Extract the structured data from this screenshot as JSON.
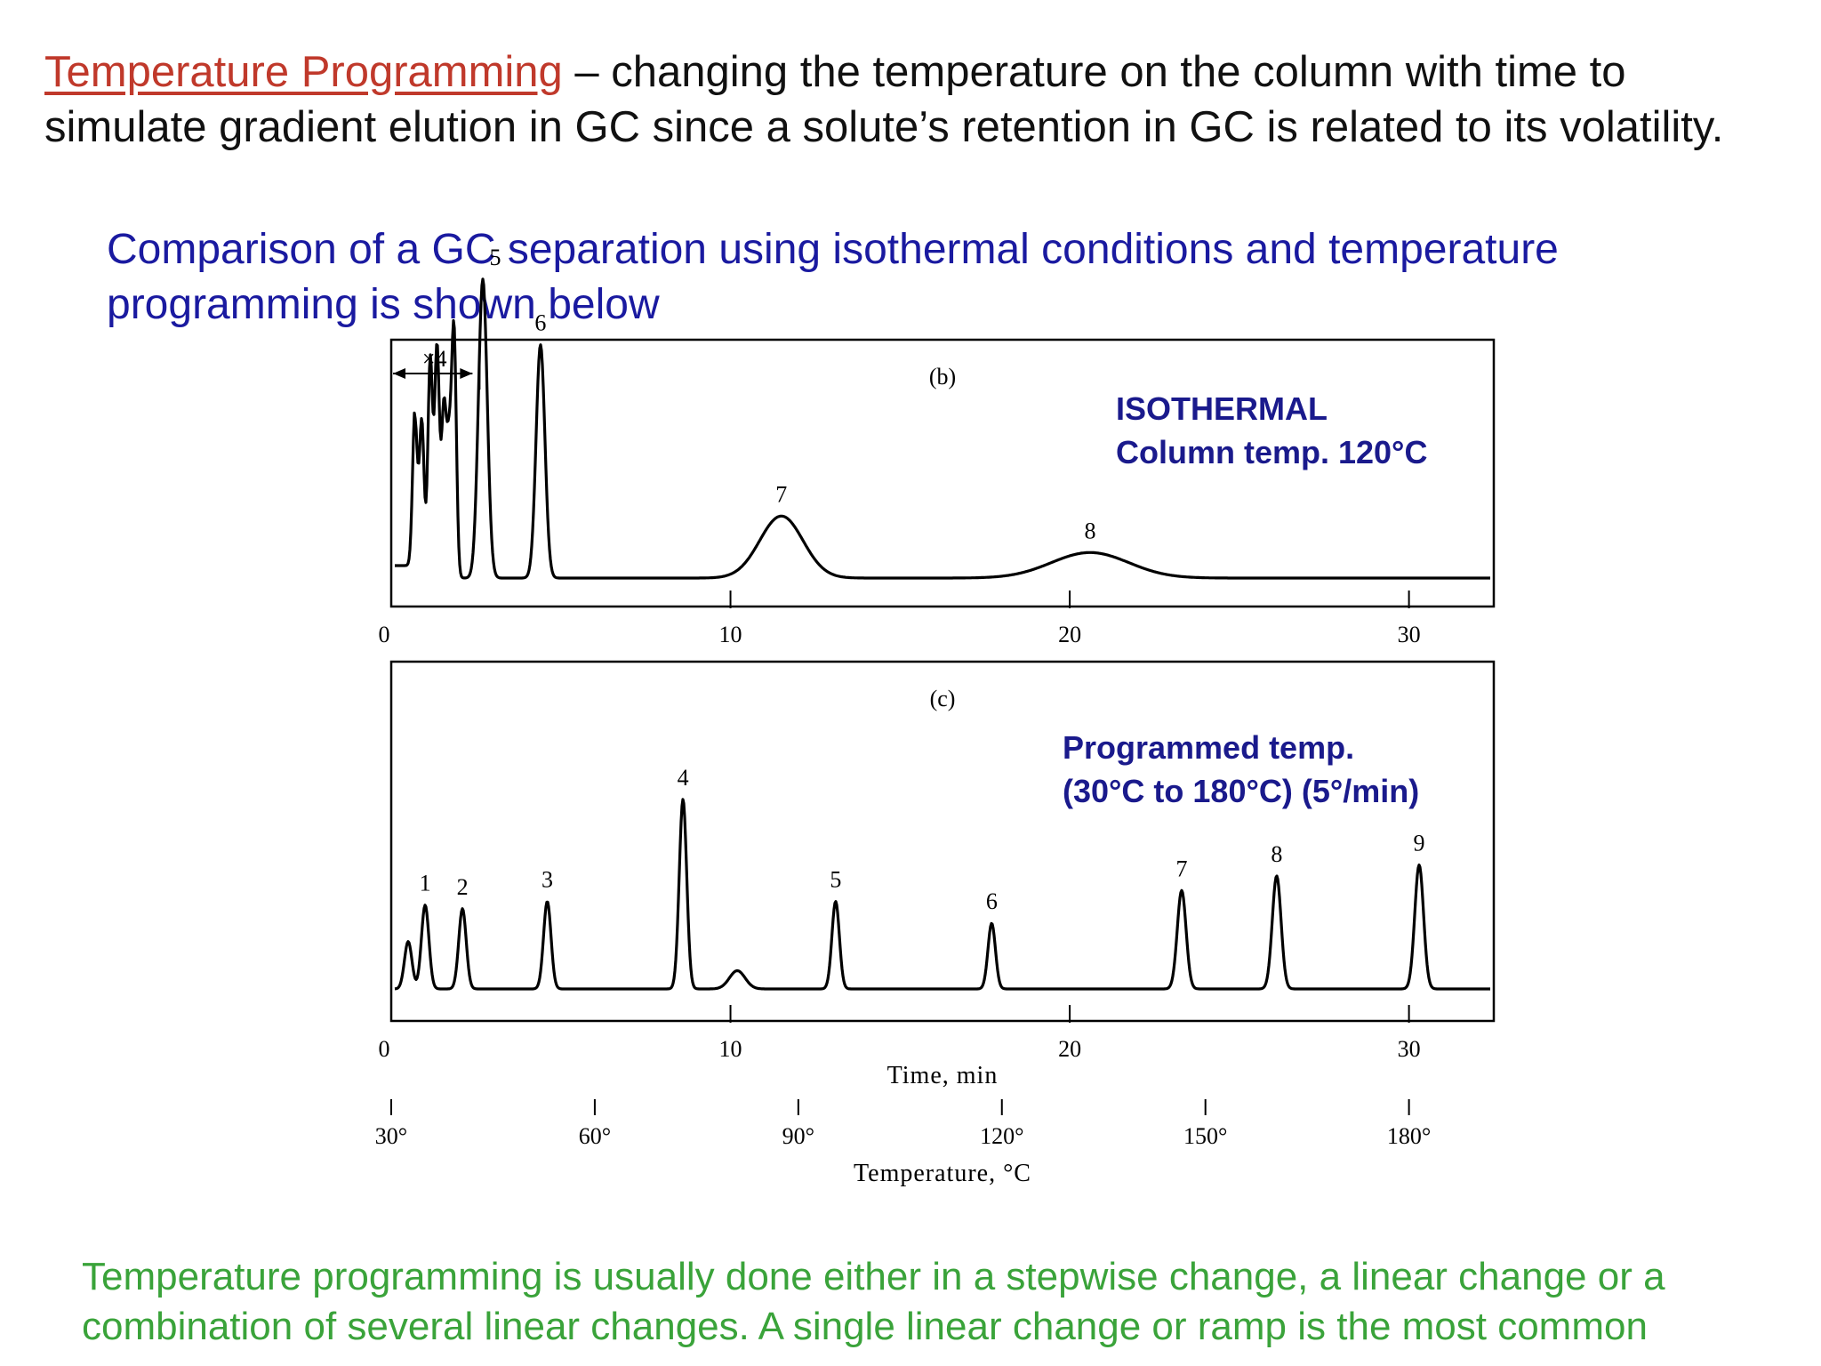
{
  "intro": {
    "term": "Temperature Programming",
    "text": " – changing the temperature on the column with time to simulate gradient elution in GC since a solute’s retention in GC is related to its volatility."
  },
  "comparison_text": "Comparison of a GC separation using isothermal conditions and temperature programming is shown below",
  "closing_text": "Temperature programming is usually done either in a stepwise change, a linear change or a combination of several linear changes.  A single linear change or ramp is the most common",
  "colors": {
    "term": "#c0392b",
    "comparison": "#1a1aa0",
    "closing": "#3aa33a",
    "annotation": "#1a1a8c",
    "trace": "#000000"
  },
  "chart_data": [
    {
      "type": "line",
      "panel": "(b)",
      "annotation_line1": "ISOTHERMAL",
      "annotation_line2": "Column temp. 120°C",
      "xlim": [
        0,
        32.5
      ],
      "xticks": [
        0,
        10,
        20,
        30
      ],
      "x_tick_labels": [
        "0",
        "10",
        "20",
        "30"
      ],
      "scale_note": "×4",
      "scale_range": [
        0,
        2.5
      ],
      "peaks": [
        {
          "label": "",
          "x": 0.7,
          "height": 0.43
        },
        {
          "label": "",
          "x": 0.9,
          "height": 0.43
        },
        {
          "label": "",
          "x": 1.15,
          "height": 0.6
        },
        {
          "label": "",
          "x": 1.35,
          "height": 0.63
        },
        {
          "label": "",
          "x": 1.55,
          "height": 0.45
        },
        {
          "label": "",
          "x": 1.7,
          "height": 0.33
        },
        {
          "label": "",
          "x": 1.85,
          "height": 0.67
        },
        {
          "label": "5",
          "x": 2.7,
          "height": 0.82
        },
        {
          "label": "6",
          "x": 4.4,
          "height": 0.64
        },
        {
          "label": "7",
          "x": 11.5,
          "height": 0.17
        },
        {
          "label": "8",
          "x": 20.6,
          "height": 0.07
        }
      ]
    },
    {
      "type": "line",
      "panel": "(c)",
      "annotation_line1": "Programmed temp.",
      "annotation_line2": "(30°C to 180°C) (5°/min)",
      "xlim": [
        0,
        32.5
      ],
      "xticks": [
        0,
        10,
        20,
        30
      ],
      "x_tick_labels": [
        "0",
        "10",
        "20",
        "30"
      ],
      "xlabel": "Time, min",
      "peaks": [
        {
          "label": "",
          "x": 0.5,
          "height": 0.13
        },
        {
          "label": "1",
          "x": 1.0,
          "height": 0.23
        },
        {
          "label": "2",
          "x": 2.1,
          "height": 0.22
        },
        {
          "label": "3",
          "x": 4.6,
          "height": 0.24
        },
        {
          "label": "4",
          "x": 8.6,
          "height": 0.52
        },
        {
          "label": "",
          "x": 10.2,
          "height": 0.05
        },
        {
          "label": "5",
          "x": 13.1,
          "height": 0.24
        },
        {
          "label": "6",
          "x": 17.7,
          "height": 0.18
        },
        {
          "label": "7",
          "x": 23.3,
          "height": 0.27
        },
        {
          "label": "8",
          "x": 26.1,
          "height": 0.31
        },
        {
          "label": "9",
          "x": 30.3,
          "height": 0.34
        }
      ]
    }
  ],
  "temperature_axis": {
    "label": "Temperature, °C",
    "ticks": [
      {
        "time": 0,
        "label": "30°"
      },
      {
        "time": 6,
        "label": "60°"
      },
      {
        "time": 12,
        "label": "90°"
      },
      {
        "time": 18,
        "label": "120°"
      },
      {
        "time": 24,
        "label": "150°"
      },
      {
        "time": 30,
        "label": "180°"
      }
    ]
  }
}
